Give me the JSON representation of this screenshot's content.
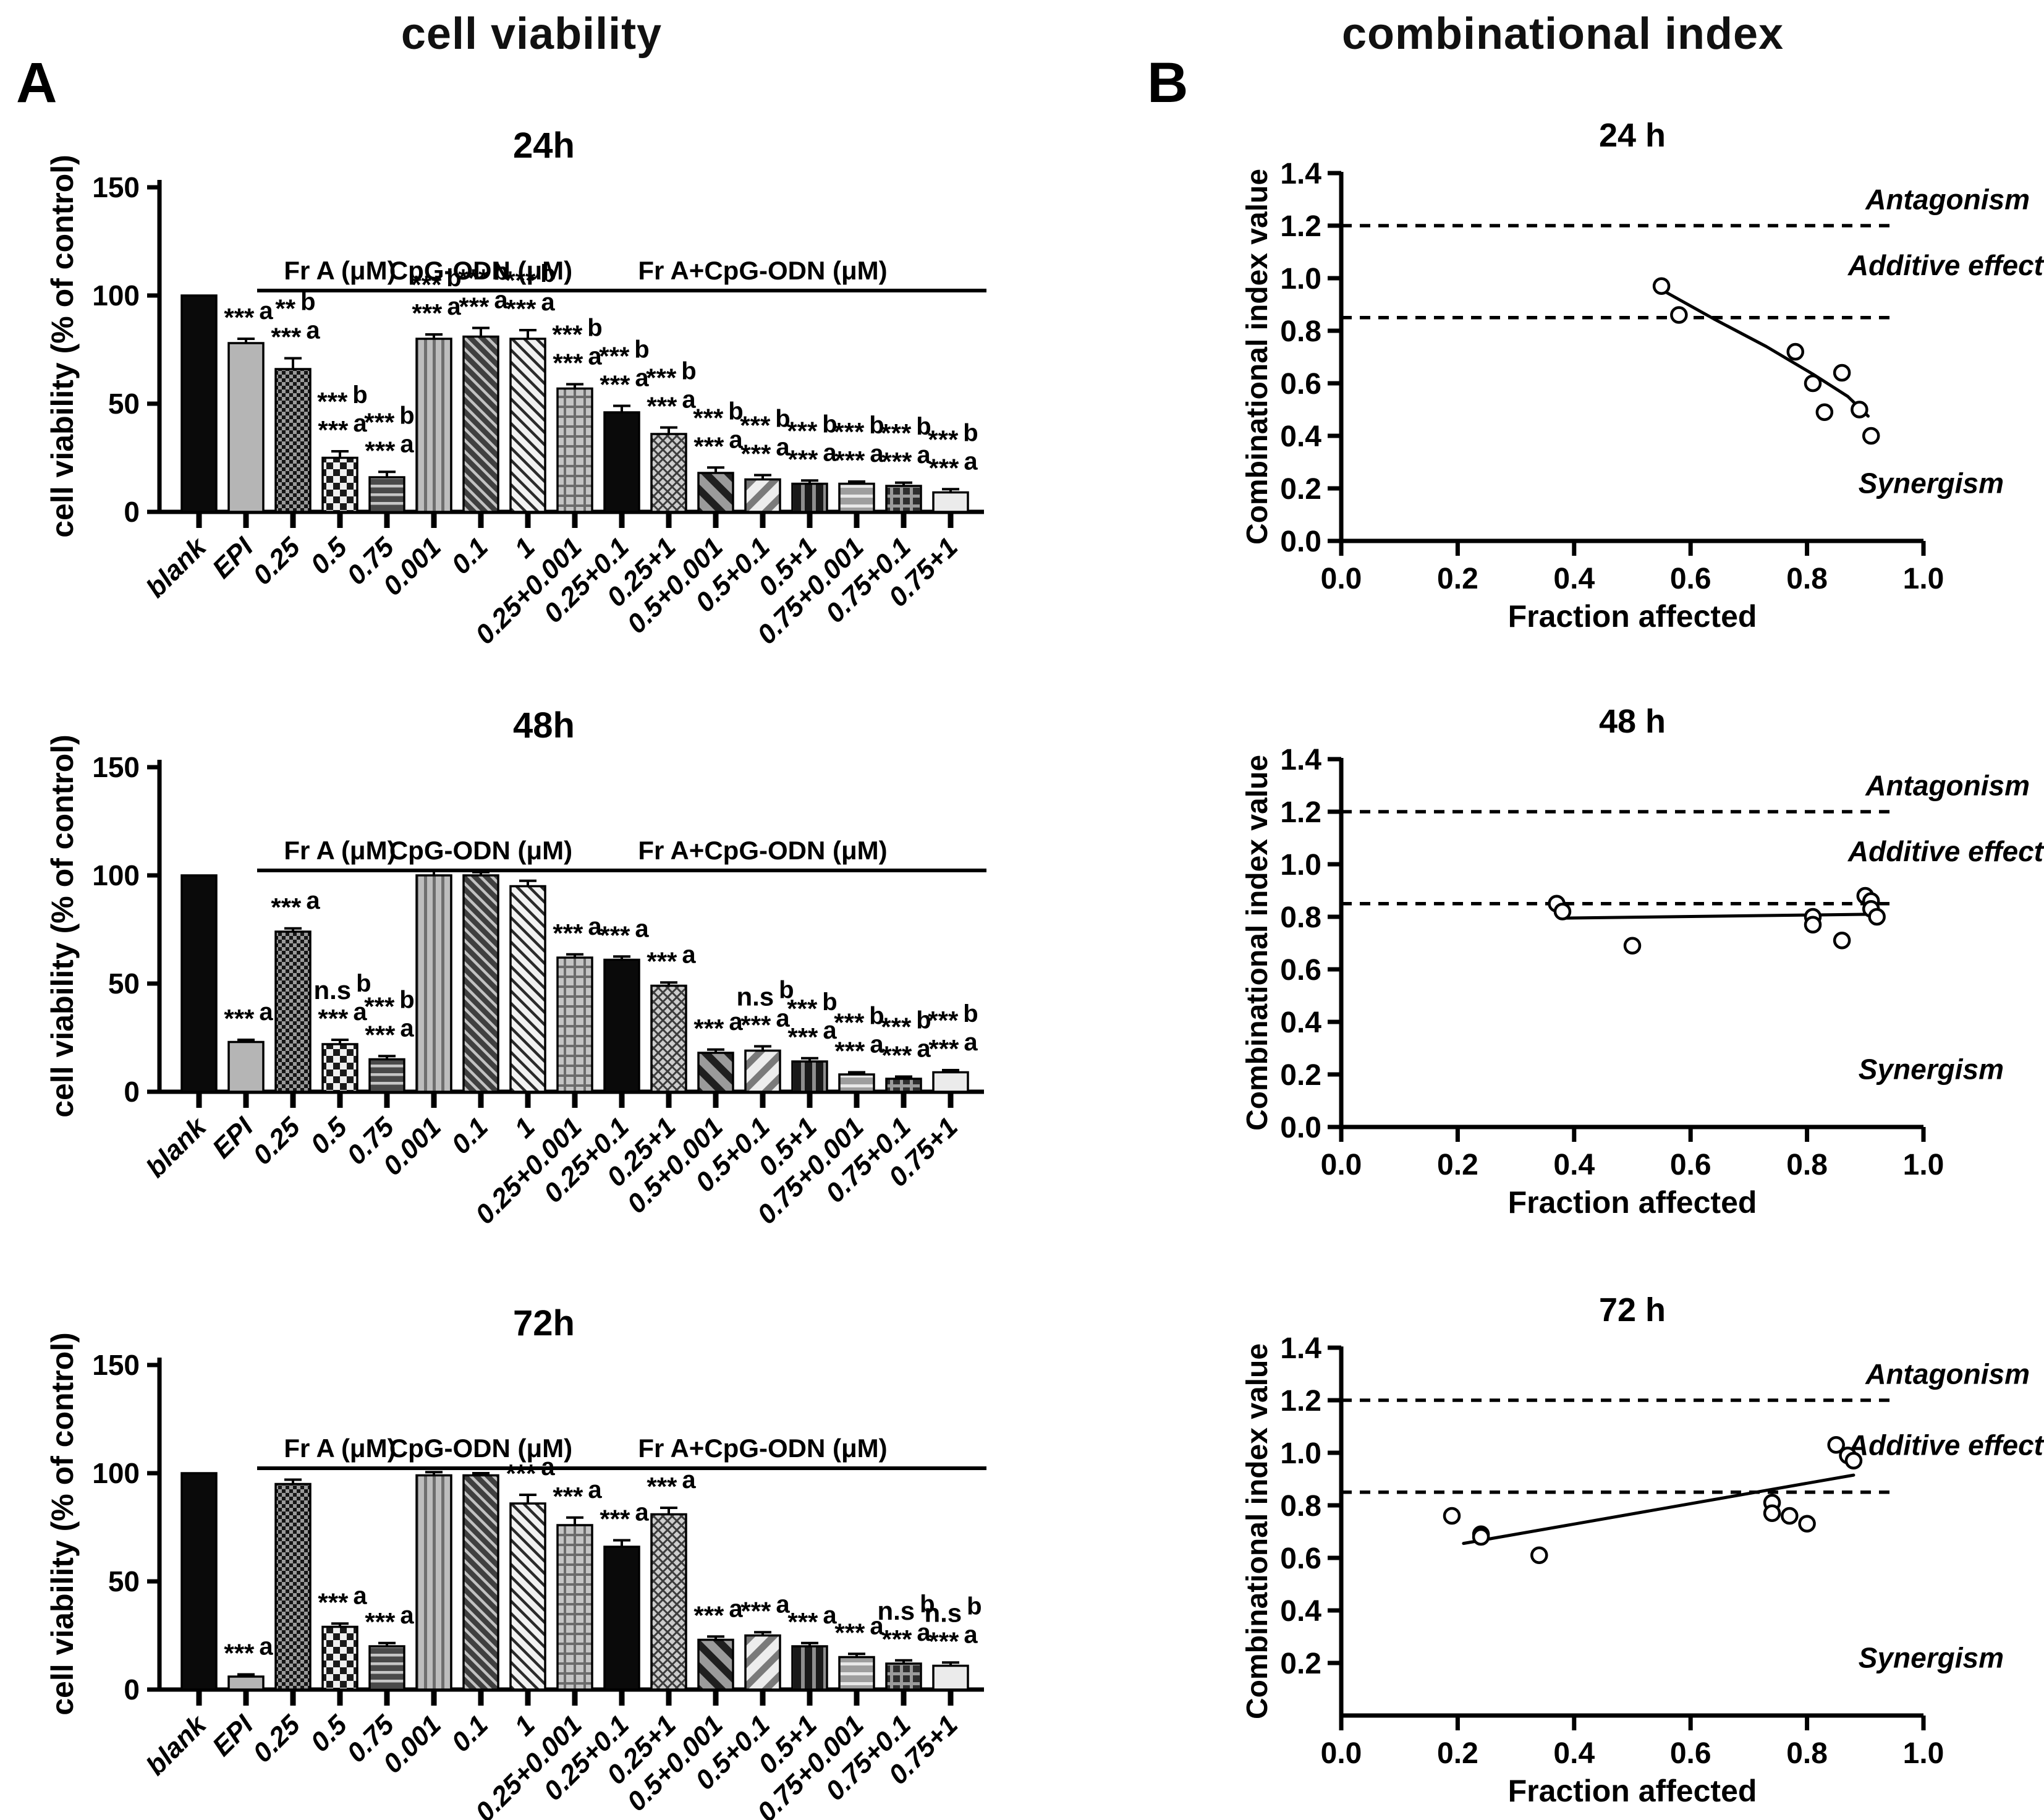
{
  "figure": {
    "panel_a_label": "A",
    "panel_b_label": "B",
    "panel_a_title": "cell viability",
    "panel_b_title": "combinational index"
  },
  "bar_groups": [
    {
      "label": "Fr A (μM)",
      "from": 2,
      "to": 4
    },
    {
      "label": "CpG-ODN (μM)",
      "from": 5,
      "to": 7
    },
    {
      "label": "Fr A+CpG-ODN (μM)",
      "from": 8,
      "to": 16
    }
  ],
  "bar_patterns": [
    "solid-black",
    "solid-gray",
    "fine-check",
    "coarse-check",
    "hstripe-dark",
    "vstripe-gray",
    "diag-dark",
    "diag-light",
    "plaid",
    "solid-black",
    "crosshatch",
    "diag-wide-dark",
    "diag-wide-light",
    "vstripe-black",
    "hstripe-gray",
    "window-grid",
    "solid-lightgray"
  ],
  "chart_data": [
    {
      "id": "viability-24h",
      "panel": "A",
      "type": "bar",
      "title": "24h",
      "ylabel": "cell viability (% of control)",
      "ylim": [
        0,
        150
      ],
      "yticks": [
        0,
        50,
        100,
        150
      ],
      "categories": [
        "blank",
        "EPI",
        "0.25",
        "0.5",
        "0.75",
        "0.001",
        "0.1",
        "1",
        "0.25+0.001",
        "0.25+0.1",
        "0.25+1",
        "0.5+0.001",
        "0.5+0.1",
        "0.5+1",
        "0.75+0.001",
        "0.75+0.1",
        "0.75+1"
      ],
      "values": [
        100,
        78,
        66,
        25,
        16,
        80,
        81,
        80,
        57,
        46,
        36,
        18,
        15,
        13,
        13,
        12,
        9
      ],
      "errors": [
        0,
        2,
        5,
        3,
        2.5,
        2,
        4,
        4,
        2,
        3,
        3,
        2.5,
        2,
        1.5,
        1,
        1.5,
        1.5
      ],
      "annotations": [
        [],
        [
          [
            "***",
            "a"
          ]
        ],
        [
          [
            "**",
            "b"
          ],
          [
            "***",
            "a"
          ]
        ],
        [
          [
            "***",
            "b"
          ],
          [
            "***",
            "a"
          ]
        ],
        [
          [
            "***",
            "b"
          ],
          [
            "***",
            "a"
          ]
        ],
        [
          [
            "***",
            "b"
          ],
          [
            "***",
            "a"
          ]
        ],
        [
          [
            "***",
            "b"
          ],
          [
            "***",
            "a"
          ]
        ],
        [
          [
            "***",
            "b"
          ],
          [
            "***",
            "a"
          ]
        ],
        [
          [
            "***",
            "b"
          ],
          [
            "***",
            "a"
          ]
        ],
        [
          [
            "***",
            "b"
          ],
          [
            "***",
            "a"
          ]
        ],
        [
          [
            "***",
            "b"
          ],
          [
            "***",
            "a"
          ]
        ],
        [
          [
            "***",
            "b"
          ],
          [
            "***",
            "a"
          ]
        ],
        [
          [
            "***",
            "b"
          ],
          [
            "***",
            "a"
          ]
        ],
        [
          [
            "***",
            "b"
          ],
          [
            "***",
            "a"
          ]
        ],
        [
          [
            "***",
            "b"
          ],
          [
            "***",
            "a"
          ]
        ],
        [
          [
            "***",
            "b"
          ],
          [
            "***",
            "a"
          ]
        ],
        [
          [
            "***",
            "b"
          ],
          [
            "***",
            "a"
          ]
        ]
      ]
    },
    {
      "id": "viability-48h",
      "panel": "A",
      "type": "bar",
      "title": "48h",
      "ylabel": "cell viability (% of control)",
      "ylim": [
        0,
        150
      ],
      "yticks": [
        0,
        50,
        100,
        150
      ],
      "categories": [
        "blank",
        "EPI",
        "0.25",
        "0.5",
        "0.75",
        "0.001",
        "0.1",
        "1",
        "0.25+0.001",
        "0.25+0.1",
        "0.25+1",
        "0.5+0.001",
        "0.5+0.1",
        "0.5+1",
        "0.75+0.001",
        "0.75+0.1",
        "0.75+1"
      ],
      "values": [
        100,
        23,
        74,
        22,
        15,
        100,
        100,
        95,
        62,
        61,
        49,
        18,
        19,
        14,
        8,
        6,
        9
      ],
      "errors": [
        0,
        1,
        1.5,
        2,
        1.5,
        2,
        1.5,
        2.5,
        1.5,
        1.5,
        1.5,
        1.5,
        2,
        1.5,
        1,
        1,
        1
      ],
      "annotations": [
        [],
        [
          [
            "***",
            "a"
          ]
        ],
        [
          [
            "***",
            "a"
          ]
        ],
        [
          [
            "n.s",
            "b"
          ],
          [
            "***",
            "a"
          ]
        ],
        [
          [
            "***",
            "b"
          ],
          [
            "***",
            "a"
          ]
        ],
        [],
        [],
        [],
        [
          [
            "***",
            "a"
          ]
        ],
        [
          [
            "***",
            "a"
          ]
        ],
        [
          [
            "***",
            "a"
          ]
        ],
        [
          [
            "***",
            "a"
          ]
        ],
        [
          [
            "n.s",
            "b"
          ],
          [
            "***",
            "a"
          ]
        ],
        [
          [
            "***",
            "b"
          ],
          [
            "***",
            "a"
          ]
        ],
        [
          [
            "***",
            "b"
          ],
          [
            "***",
            "a"
          ]
        ],
        [
          [
            "***",
            "b"
          ],
          [
            "***",
            "a"
          ]
        ],
        [
          [
            "***",
            "b"
          ],
          [
            "***",
            "a"
          ]
        ]
      ]
    },
    {
      "id": "viability-72h",
      "panel": "A",
      "type": "bar",
      "title": "72h",
      "ylabel": "cell viability (% of control)",
      "ylim": [
        0,
        150
      ],
      "yticks": [
        0,
        50,
        100,
        150
      ],
      "categories": [
        "blank",
        "EPI",
        "0.25",
        "0.5",
        "0.75",
        "0.001",
        "0.1",
        "1",
        "0.25+0.001",
        "0.25+0.1",
        "0.25+1",
        "0.5+0.001",
        "0.5+0.1",
        "0.5+1",
        "0.75+0.001",
        "0.75+0.1",
        "0.75+1"
      ],
      "values": [
        100,
        6,
        95,
        29,
        20,
        99,
        99,
        86,
        76,
        66,
        81,
        23,
        25,
        20,
        15,
        12,
        11
      ],
      "errors": [
        0,
        1,
        2,
        1.5,
        1.5,
        1.5,
        1,
        4,
        3.5,
        3,
        3,
        1.5,
        1.5,
        1.5,
        1.5,
        1.5,
        1.5
      ],
      "annotations": [
        [],
        [
          [
            "***",
            "a"
          ]
        ],
        [],
        [
          [
            "***",
            "a"
          ]
        ],
        [
          [
            "***",
            "a"
          ]
        ],
        [],
        [],
        [
          [
            "***",
            "a"
          ]
        ],
        [
          [
            "***",
            "a"
          ]
        ],
        [
          [
            "***",
            "a"
          ]
        ],
        [
          [
            "***",
            "a"
          ]
        ],
        [
          [
            "***",
            "a"
          ]
        ],
        [
          [
            "***",
            "a"
          ]
        ],
        [
          [
            "***",
            "a"
          ]
        ],
        [
          [
            "***",
            "a"
          ]
        ],
        [
          [
            "n.s",
            "b"
          ],
          [
            "***",
            "a"
          ]
        ],
        [
          [
            "n.s",
            "b"
          ],
          [
            "***",
            "a"
          ]
        ]
      ]
    },
    {
      "id": "ci-24h",
      "panel": "B",
      "type": "scatter",
      "title": "24 h",
      "xlabel": "Fraction affected",
      "ylabel": "Combinational index value",
      "xlim": [
        0,
        1.0
      ],
      "ylim": [
        0,
        1.4
      ],
      "xticks": [
        "0.0",
        "0.2",
        "0.4",
        "0.6",
        "0.8",
        "1.0"
      ],
      "yticks": [
        "0.0",
        "0.2",
        "0.4",
        "0.6",
        "0.8",
        "1.0",
        "1.2",
        "1.4"
      ],
      "dashed_lines": [
        1.2,
        0.85
      ],
      "region_labels": [
        {
          "text": "Antagonism",
          "y": 1.3
        },
        {
          "text": "Additive effect",
          "y": 1.05
        },
        {
          "text": "Synergism",
          "y": 0.22
        }
      ],
      "points": [
        [
          0.55,
          0.97
        ],
        [
          0.58,
          0.86
        ],
        [
          0.78,
          0.72
        ],
        [
          0.81,
          0.6
        ],
        [
          0.86,
          0.64
        ],
        [
          0.83,
          0.49
        ],
        [
          0.89,
          0.5
        ],
        [
          0.91,
          0.4
        ]
      ],
      "trend": [
        [
          0.555,
          0.95
        ],
        [
          0.64,
          0.845
        ],
        [
          0.73,
          0.74
        ],
        [
          0.81,
          0.635
        ],
        [
          0.87,
          0.55
        ],
        [
          0.905,
          0.475
        ]
      ]
    },
    {
      "id": "ci-48h",
      "panel": "B",
      "type": "scatter",
      "title": "48 h",
      "xlabel": "Fraction affected",
      "ylabel": "Combinational index value",
      "xlim": [
        0,
        1.0
      ],
      "ylim": [
        0,
        1.4
      ],
      "xticks": [
        "0.0",
        "0.2",
        "0.4",
        "0.6",
        "0.8",
        "1.0"
      ],
      "yticks": [
        "0.0",
        "0.2",
        "0.4",
        "0.6",
        "0.8",
        "1.0",
        "1.2",
        "1.4"
      ],
      "dashed_lines": [
        1.2,
        0.85
      ],
      "region_labels": [
        {
          "text": "Antagonism",
          "y": 1.3
        },
        {
          "text": "Additive effect",
          "y": 1.05
        },
        {
          "text": "Synergism",
          "y": 0.22
        }
      ],
      "points": [
        [
          0.37,
          0.85
        ],
        [
          0.38,
          0.82
        ],
        [
          0.5,
          0.69
        ],
        [
          0.81,
          0.8
        ],
        [
          0.81,
          0.77
        ],
        [
          0.86,
          0.71
        ],
        [
          0.9,
          0.88
        ],
        [
          0.91,
          0.86
        ],
        [
          0.91,
          0.83
        ],
        [
          0.92,
          0.8
        ]
      ],
      "trend": [
        [
          0.38,
          0.795
        ],
        [
          0.92,
          0.81
        ]
      ]
    },
    {
      "id": "ci-72h",
      "panel": "B",
      "type": "scatter",
      "title": "72 h",
      "xlabel": "Fraction affected",
      "ylabel": "Combinational index value",
      "xlim": [
        0,
        1.0
      ],
      "ylim": [
        0,
        1.4
      ],
      "xticks": [
        "0.0",
        "0.2",
        "0.4",
        "0.6",
        "0.8",
        "1.0"
      ],
      "yticks": [
        "0.2",
        "0.4",
        "0.6",
        "0.8",
        "1.0",
        "1.2",
        "1.4"
      ],
      "dashed_lines": [
        1.2,
        0.85
      ],
      "region_labels": [
        {
          "text": "Antagonism",
          "y": 1.3
        },
        {
          "text": "Additive effect",
          "y": 1.03
        },
        {
          "text": "Synergism",
          "y": 0.22
        }
      ],
      "points": [
        [
          0.19,
          0.76
        ],
        [
          0.24,
          0.69
        ],
        [
          0.24,
          0.68
        ],
        [
          0.34,
          0.61
        ],
        [
          0.74,
          0.81
        ],
        [
          0.74,
          0.77
        ],
        [
          0.77,
          0.76
        ],
        [
          0.8,
          0.73
        ],
        [
          0.85,
          1.03
        ],
        [
          0.87,
          0.99
        ],
        [
          0.88,
          0.97
        ]
      ],
      "trend": [
        [
          0.21,
          0.655
        ],
        [
          0.88,
          0.915
        ]
      ]
    }
  ]
}
